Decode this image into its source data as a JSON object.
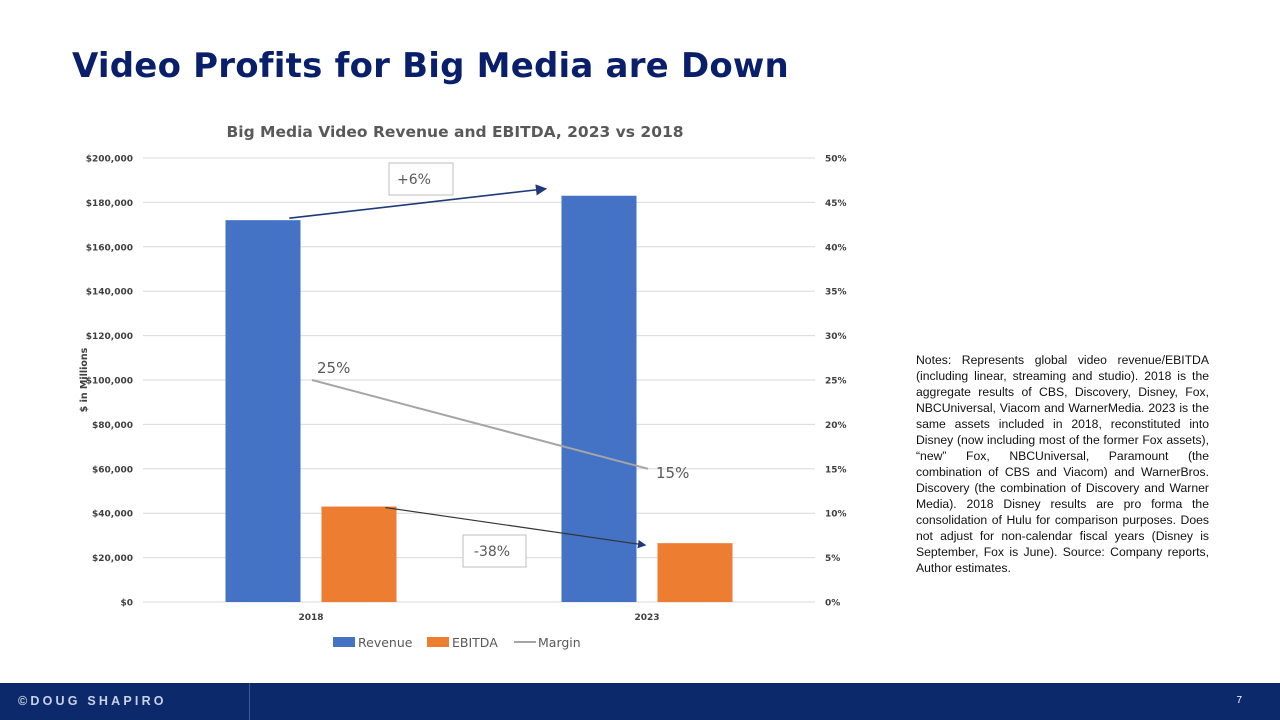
{
  "slide": {
    "title": "Video Profits for Big Media are Down",
    "notes": "Notes: Represents global video revenue/EBITDA (including linear, streaming and studio). 2018 is the aggregate results of CBS, Discovery, Disney, Fox, NBCUniversal, Viacom and WarnerMedia. 2023 is the same assets included in 2018, reconstituted into Disney (now including most of the former Fox assets), “new” Fox, NBCUniversal, Paramount (the combination of CBS and Viacom) and WarnerBros. Discovery (the combination of Discovery and Warner Media). 2018 Disney results are pro forma the consolidation of Hulu for comparison purposes. Does not adjust for non-calendar fiscal years (Disney is September, Fox is June). Source: Company reports, Author estimates."
  },
  "footer": {
    "brand": "©DOUG SHAPIRO",
    "page_number": "7"
  },
  "chart_data": {
    "type": "bar",
    "title": "Big Media Video Revenue and EBITDA, 2023 vs 2018",
    "categories": [
      "2018",
      "2023"
    ],
    "series": [
      {
        "name": "Revenue",
        "type": "bar",
        "axis": "left",
        "color": "#4472c4",
        "values": [
          172000,
          183000
        ]
      },
      {
        "name": "EBITDA",
        "type": "bar",
        "axis": "left",
        "color": "#ed7d31",
        "values": [
          43000,
          26500
        ]
      },
      {
        "name": "Margin",
        "type": "line",
        "axis": "right",
        "color": "#a5a5a5",
        "values": [
          25,
          15
        ]
      }
    ],
    "ylabel": "$ in Millions",
    "ylim": [
      0,
      200000
    ],
    "y_ticks": [
      "$0",
      "$20,000",
      "$40,000",
      "$60,000",
      "$80,000",
      "$100,000",
      "$120,000",
      "$140,000",
      "$160,000",
      "$180,000",
      "$200,000"
    ],
    "y2lim": [
      0,
      50
    ],
    "y2_ticks": [
      "0%",
      "5%",
      "10%",
      "15%",
      "20%",
      "25%",
      "30%",
      "35%",
      "40%",
      "45%",
      "50%"
    ],
    "grid": true,
    "legend_position": "bottom",
    "legend": [
      "Revenue",
      "EBITDA",
      "Margin"
    ],
    "annotations": {
      "revenue_change": "+6%",
      "ebitda_change": "-38%",
      "margin_2018": "25%",
      "margin_2023": "15%"
    },
    "colors": {
      "revenue": "#4472c4",
      "ebitda": "#ed7d31",
      "margin": "#a5a5a5",
      "arrow": "#1f3a7a",
      "title_text": "#595959",
      "gridline": "#d9d9d9"
    }
  }
}
